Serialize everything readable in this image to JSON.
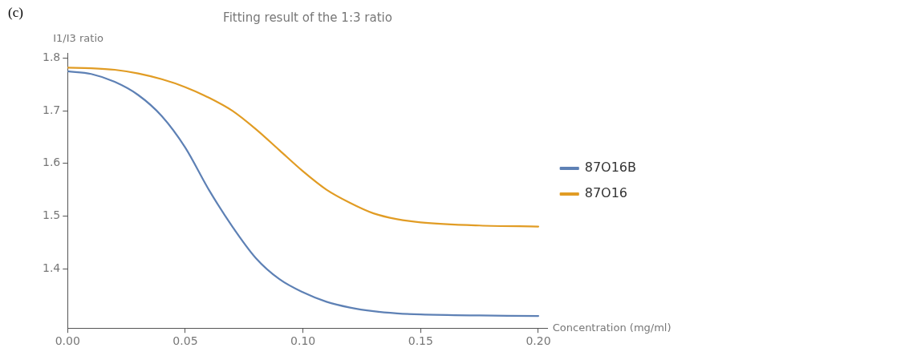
{
  "chart_data": {
    "type": "line",
    "title": "Fitting result of the 1:3 ratio",
    "xlabel": "Concentration (mg/ml)",
    "ylabel": "I1/I3 ratio",
    "annotations": [
      "(c)"
    ],
    "x": [
      0,
      0.01,
      0.02,
      0.03,
      0.04,
      0.05,
      0.06,
      0.07,
      0.08,
      0.09,
      0.1,
      0.11,
      0.12,
      0.13,
      0.14,
      0.15,
      0.175,
      0.2
    ],
    "series": [
      {
        "name": "87O16B",
        "color": "#5e81b5",
        "values": [
          1.775,
          1.77,
          1.755,
          1.73,
          1.69,
          1.63,
          1.55,
          1.48,
          1.42,
          1.38,
          1.355,
          1.337,
          1.326,
          1.319,
          1.315,
          1.313,
          1.311,
          1.31
        ]
      },
      {
        "name": "87O16",
        "color": "#e19c24",
        "values": [
          1.782,
          1.781,
          1.778,
          1.771,
          1.76,
          1.745,
          1.725,
          1.7,
          1.665,
          1.625,
          1.585,
          1.55,
          1.525,
          1.505,
          1.494,
          1.488,
          1.482,
          1.48
        ]
      }
    ],
    "xlim": [
      0,
      0.204
    ],
    "ylim": [
      1.287,
      1.81
    ],
    "xticks": [
      {
        "value": 0,
        "label": "0.00"
      },
      {
        "value": 0.05,
        "label": "0.05"
      },
      {
        "value": 0.1,
        "label": "0.10"
      },
      {
        "value": 0.15,
        "label": "0.15"
      },
      {
        "value": 0.2,
        "label": "0.20"
      }
    ],
    "yticks": [
      1.4,
      1.5,
      1.6,
      1.7,
      1.8
    ],
    "grid": false,
    "legend": "right",
    "marker": "none",
    "line_style": "solid"
  }
}
